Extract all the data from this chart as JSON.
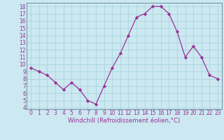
{
  "x": [
    0,
    1,
    2,
    3,
    4,
    5,
    6,
    7,
    8,
    9,
    10,
    11,
    12,
    13,
    14,
    15,
    16,
    17,
    18,
    19,
    20,
    21,
    22,
    23
  ],
  "y": [
    9.5,
    9.0,
    8.5,
    7.5,
    6.5,
    7.5,
    6.5,
    5.0,
    4.5,
    7.0,
    9.5,
    11.5,
    14.0,
    16.5,
    17.0,
    18.0,
    18.0,
    17.0,
    14.5,
    11.0,
    12.5,
    11.0,
    8.5,
    8.0
  ],
  "line_color": "#993399",
  "marker": "D",
  "marker_size": 2.2,
  "bg_color": "#cce8f0",
  "grid_color": "#aad4e0",
  "xlabel": "Windchill (Refroidissement éolien,°C)",
  "xlabel_color": "#993399",
  "tick_color": "#993399",
  "xlim": [
    -0.5,
    23.5
  ],
  "ylim": [
    3.8,
    18.5
  ],
  "yticks": [
    4,
    5,
    6,
    7,
    8,
    9,
    10,
    11,
    12,
    13,
    14,
    15,
    16,
    17,
    18
  ],
  "xticks": [
    0,
    1,
    2,
    3,
    4,
    5,
    6,
    7,
    8,
    9,
    10,
    11,
    12,
    13,
    14,
    15,
    16,
    17,
    18,
    19,
    20,
    21,
    22,
    23
  ],
  "tick_fontsize": 5.5,
  "xlabel_fontsize": 6.2,
  "spine_color": "#7799aa"
}
